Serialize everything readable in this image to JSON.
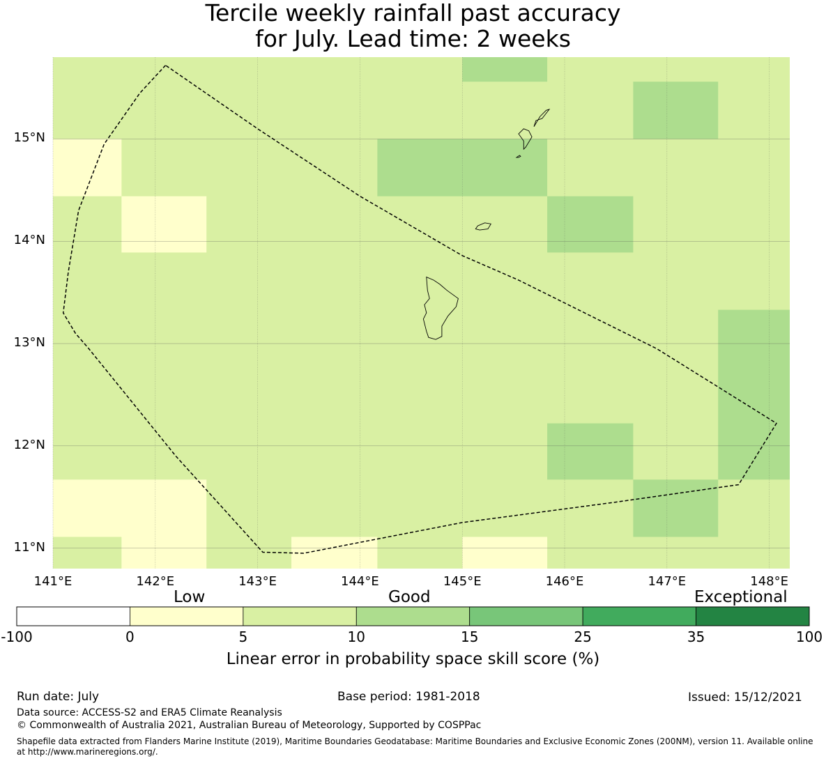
{
  "title": {
    "line1": "Tercile weekly rainfall past accuracy",
    "line2": "for July. Lead time: 2 weeks"
  },
  "map": {
    "lon_range": [
      141.0,
      148.2
    ],
    "lat_range": [
      10.8,
      15.8
    ],
    "lat_ticks": [
      {
        "value": 15,
        "label": "15°N"
      },
      {
        "value": 14,
        "label": "14°N"
      },
      {
        "value": 13,
        "label": "13°N"
      },
      {
        "value": 12,
        "label": "12°N"
      },
      {
        "value": 11,
        "label": "11°N"
      }
    ],
    "lon_ticks": [
      {
        "value": 141,
        "label": "141°E"
      },
      {
        "value": 142,
        "label": "142°E"
      },
      {
        "value": 143,
        "label": "143°E"
      },
      {
        "value": 144,
        "label": "144°E"
      },
      {
        "value": 145,
        "label": "145°E"
      },
      {
        "value": 146,
        "label": "146°E"
      },
      {
        "value": 147,
        "label": "147°E"
      },
      {
        "value": 148,
        "label": "148°E"
      }
    ],
    "background_category": "5-10",
    "highlight_cells": [
      {
        "lon": [
          145.0,
          145.83
        ],
        "lat": [
          15.56,
          15.8
        ],
        "category": "10-15"
      },
      {
        "lon": [
          146.67,
          147.5
        ],
        "lat": [
          15.0,
          15.56
        ],
        "category": "10-15"
      },
      {
        "lon": [
          144.17,
          145.83
        ],
        "lat": [
          14.44,
          15.0
        ],
        "category": "10-15"
      },
      {
        "lon": [
          145.83,
          146.67
        ],
        "lat": [
          13.89,
          14.44
        ],
        "category": "10-15"
      },
      {
        "lon": [
          147.5,
          148.2
        ],
        "lat": [
          11.67,
          13.33
        ],
        "category": "10-15"
      },
      {
        "lon": [
          145.83,
          146.67
        ],
        "lat": [
          11.67,
          12.22
        ],
        "category": "10-15"
      },
      {
        "lon": [
          146.67,
          147.5
        ],
        "lat": [
          11.11,
          11.67
        ],
        "category": "10-15"
      },
      {
        "lon": [
          141.0,
          141.67
        ],
        "lat": [
          14.44,
          15.0
        ],
        "category": "0-5"
      },
      {
        "lon": [
          141.67,
          142.5
        ],
        "lat": [
          13.89,
          14.44
        ],
        "category": "0-5"
      },
      {
        "lon": [
          141.0,
          142.5
        ],
        "lat": [
          11.11,
          11.67
        ],
        "category": "0-5"
      },
      {
        "lon": [
          141.67,
          142.5
        ],
        "lat": [
          10.8,
          11.11
        ],
        "category": "0-5"
      },
      {
        "lon": [
          143.33,
          144.17
        ],
        "lat": [
          10.8,
          11.11
        ],
        "category": "0-5"
      },
      {
        "lon": [
          145.0,
          145.83
        ],
        "lat": [
          10.8,
          11.11
        ],
        "category": "0-5"
      }
    ],
    "eez_boundary": [
      [
        142.1,
        15.72
      ],
      [
        141.85,
        15.45
      ],
      [
        141.5,
        14.95
      ],
      [
        141.25,
        14.3
      ],
      [
        141.15,
        13.7
      ],
      [
        141.1,
        13.3
      ],
      [
        141.22,
        13.1
      ],
      [
        141.35,
        12.95
      ],
      [
        142.2,
        11.9
      ],
      [
        143.05,
        10.96
      ],
      [
        143.45,
        10.95
      ],
      [
        145.0,
        11.25
      ],
      [
        146.5,
        11.45
      ],
      [
        147.7,
        11.62
      ],
      [
        148.07,
        12.22
      ],
      [
        146.9,
        12.95
      ],
      [
        145.55,
        13.62
      ],
      [
        145.0,
        13.86
      ],
      [
        144.0,
        14.44
      ],
      [
        143.0,
        15.1
      ],
      [
        142.1,
        15.72
      ]
    ],
    "islands": [
      [
        [
          144.65,
          13.65
        ],
        [
          144.72,
          13.62
        ],
        [
          144.78,
          13.58
        ],
        [
          144.85,
          13.52
        ],
        [
          144.96,
          13.44
        ],
        [
          144.94,
          13.36
        ],
        [
          144.86,
          13.27
        ],
        [
          144.8,
          13.17
        ],
        [
          144.8,
          13.07
        ],
        [
          144.74,
          13.04
        ],
        [
          144.67,
          13.06
        ],
        [
          144.65,
          13.12
        ],
        [
          144.62,
          13.24
        ],
        [
          144.65,
          13.3
        ],
        [
          144.63,
          13.38
        ],
        [
          144.68,
          13.44
        ],
        [
          144.66,
          13.52
        ],
        [
          144.65,
          13.65
        ]
      ],
      [
        [
          145.15,
          14.15
        ],
        [
          145.22,
          14.18
        ],
        [
          145.28,
          14.17
        ],
        [
          145.25,
          14.12
        ],
        [
          145.17,
          14.11
        ],
        [
          145.13,
          14.12
        ],
        [
          145.15,
          14.15
        ]
      ],
      [
        [
          145.55,
          14.82
        ],
        [
          145.57,
          14.83
        ],
        [
          145.56,
          14.84
        ],
        [
          145.53,
          14.82
        ],
        [
          145.55,
          14.82
        ]
      ],
      [
        [
          145.65,
          15.08
        ],
        [
          145.68,
          15.02
        ],
        [
          145.62,
          14.92
        ],
        [
          145.6,
          14.9
        ],
        [
          145.6,
          14.98
        ],
        [
          145.55,
          15.05
        ],
        [
          145.6,
          15.1
        ],
        [
          145.65,
          15.08
        ]
      ],
      [
        [
          145.72,
          15.18
        ],
        [
          145.78,
          15.2
        ],
        [
          145.85,
          15.29
        ],
        [
          145.82,
          15.28
        ],
        [
          145.76,
          15.22
        ],
        [
          145.7,
          15.12
        ],
        [
          145.72,
          15.18
        ]
      ]
    ]
  },
  "colorbar": {
    "words": {
      "low": "Low",
      "good": "Good",
      "exceptional": "Exceptional"
    },
    "bins": [
      {
        "range": "-100-0",
        "color": "#ffffff"
      },
      {
        "range": "0-5",
        "color": "#ffffcc"
      },
      {
        "range": "5-10",
        "color": "#d9f0a3"
      },
      {
        "range": "10-15",
        "color": "#addd8e"
      },
      {
        "range": "15-25",
        "color": "#78c679"
      },
      {
        "range": "25-35",
        "color": "#41ab5d"
      },
      {
        "range": "35-100",
        "color": "#238443"
      }
    ],
    "ticks": [
      "-100",
      "0",
      "5",
      "10",
      "15",
      "25",
      "35",
      "100"
    ],
    "label": "Linear error in probability space skill score (%)"
  },
  "footer": {
    "run_date": "Run date: July",
    "base_period": "Base period: 1981-2018",
    "issued": "Issued: 15/12/2021",
    "data_source": "Data source: ACCESS-S2 and ERA5 Climate Reanalysis",
    "copyright": "© Commonwealth of Australia 2021, Australian Bureau of Meteorology, Supported by COSPPac",
    "shapefile_line1": "Shapefile data extracted from Flanders Marine Institute (2019), Maritime Boundaries Geodatabase: Maritime Boundaries and Exclusive Economic Zones (200NM), version 11. Available online",
    "shapefile_line2": "at http://www.marineregions.org/."
  }
}
